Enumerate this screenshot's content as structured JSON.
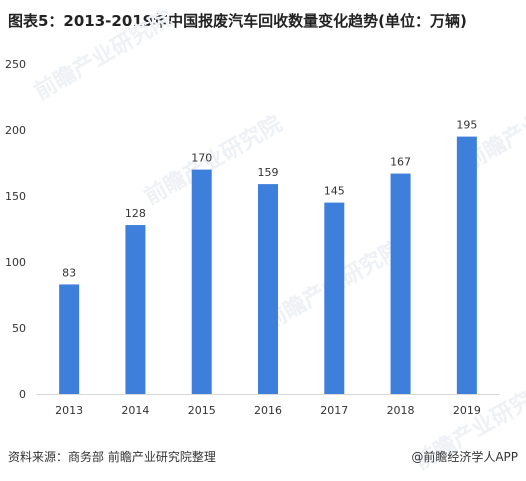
{
  "title": "图表5：2013-2019年中国报废汽车回收数量变化趋势(单位：万辆)",
  "footer": {
    "source": "资料来源：商务部 前瞻产业研究院整理",
    "credit": "@前瞻经济学人APP"
  },
  "watermark": {
    "text": "前瞻产业研究院"
  },
  "colors": {
    "bar": "#3f7fdc",
    "axis": "#d9d9d9",
    "watermark": "#eef1f5"
  },
  "chart_data": {
    "type": "bar",
    "title": "图表5：2013-2019年中国报废汽车回收数量变化趋势(单位：万辆)",
    "xlabel": "",
    "ylabel": "",
    "categories": [
      "2013",
      "2014",
      "2015",
      "2016",
      "2017",
      "2018",
      "2019"
    ],
    "values": [
      83,
      128,
      170,
      159,
      145,
      167,
      195
    ],
    "ylim": [
      0,
      250
    ],
    "yticks": [
      0,
      50,
      100,
      150,
      200,
      250
    ],
    "grid": false,
    "legend": "none",
    "data_labels": true
  }
}
